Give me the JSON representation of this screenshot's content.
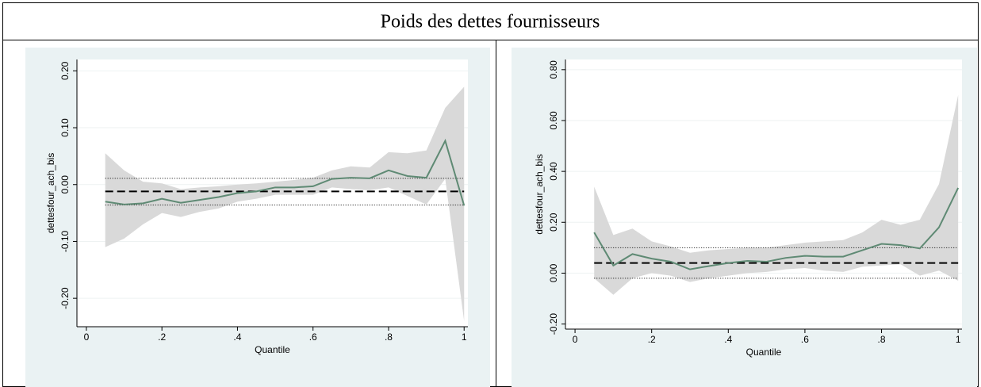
{
  "header": {
    "title": "Poids des dettes fournisseurs"
  },
  "chart_data": [
    {
      "type": "line",
      "ylabel": "dettesfour_ach_bis",
      "xlabel": "Quantile",
      "x": [
        0.05,
        0.1,
        0.15,
        0.2,
        0.25,
        0.3,
        0.35,
        0.4,
        0.45,
        0.5,
        0.55,
        0.6,
        0.65,
        0.7,
        0.75,
        0.8,
        0.85,
        0.9,
        0.95,
        1
      ],
      "series": [
        {
          "color": "#5f8a74",
          "values": [
            -0.03,
            -0.035,
            -0.033,
            -0.025,
            -0.032,
            -0.027,
            -0.022,
            -0.015,
            -0.012,
            -0.005,
            -0.005,
            -0.003,
            0.01,
            0.012,
            0.011,
            0.025,
            0.015,
            0.012,
            0.077,
            -0.037
          ]
        }
      ],
      "ci_upper": [
        0.055,
        0.025,
        0.005,
        0.002,
        -0.008,
        -0.005,
        -0.003,
        0.0,
        0.002,
        0.005,
        0.008,
        0.012,
        0.025,
        0.032,
        0.03,
        0.057,
        0.055,
        0.06,
        0.135,
        0.172
      ],
      "ci_lower": [
        -0.11,
        -0.095,
        -0.07,
        -0.05,
        -0.057,
        -0.048,
        -0.042,
        -0.03,
        -0.025,
        -0.018,
        -0.018,
        -0.018,
        -0.005,
        -0.008,
        -0.01,
        -0.005,
        -0.02,
        -0.035,
        0.01,
        -0.24
      ],
      "ci_color": "#d9d9d9",
      "ols_value": -0.012,
      "ols_upper": 0.011,
      "ols_lower": -0.036,
      "xlim": [
        -0.025,
        1.01
      ],
      "ylim": [
        -0.25,
        0.22
      ],
      "xticks": [
        0,
        {
          "value": 0.2,
          "label": ".2"
        },
        {
          "value": 0.4,
          "label": ".4"
        },
        {
          "value": 0.6,
          "label": ".6"
        },
        {
          "value": 0.8,
          "label": ".8"
        },
        1
      ],
      "yticks": [
        {
          "value": -0.2,
          "label": "-0.20"
        },
        {
          "value": -0.1,
          "label": "-0.10"
        },
        {
          "value": 0,
          "label": "0.00"
        },
        {
          "value": 0.1,
          "label": "0.10"
        },
        {
          "value": 0.2,
          "label": "0.20"
        }
      ],
      "grid": true
    },
    {
      "type": "line",
      "ylabel": "dettesfour_ach_bis",
      "xlabel": "Quantile",
      "x": [
        0.05,
        0.1,
        0.15,
        0.2,
        0.25,
        0.3,
        0.35,
        0.4,
        0.45,
        0.5,
        0.55,
        0.6,
        0.65,
        0.7,
        0.75,
        0.8,
        0.85,
        0.9,
        0.95,
        1
      ],
      "series": [
        {
          "color": "#5f8a74",
          "values": [
            0.16,
            0.03,
            0.075,
            0.057,
            0.045,
            0.015,
            0.028,
            0.04,
            0.048,
            0.045,
            0.06,
            0.068,
            0.065,
            0.065,
            0.09,
            0.115,
            0.11,
            0.097,
            0.18,
            0.335
          ]
        }
      ],
      "ci_upper": [
        0.34,
        0.15,
        0.175,
        0.125,
        0.105,
        0.08,
        0.09,
        0.095,
        0.1,
        0.1,
        0.11,
        0.12,
        0.125,
        0.13,
        0.16,
        0.21,
        0.19,
        0.21,
        0.35,
        0.7
      ],
      "ci_lower": [
        -0.02,
        -0.085,
        -0.02,
        0.0,
        -0.01,
        -0.035,
        -0.02,
        -0.01,
        0.0,
        0.005,
        0.015,
        0.02,
        0.01,
        0.005,
        0.025,
        0.03,
        0.035,
        -0.01,
        0.01,
        -0.03
      ],
      "ci_color": "#d9d9d9",
      "ols_value": 0.04,
      "ols_upper": 0.1,
      "ols_lower": -0.02,
      "xlim": [
        -0.025,
        1.01
      ],
      "ylim": [
        -0.22,
        0.84
      ],
      "xticks": [
        0,
        {
          "value": 0.2,
          "label": ".2"
        },
        {
          "value": 0.4,
          "label": ".4"
        },
        {
          "value": 0.6,
          "label": ".6"
        },
        {
          "value": 0.8,
          "label": ".8"
        },
        1
      ],
      "yticks": [
        {
          "value": -0.2,
          "label": "-0.20"
        },
        {
          "value": 0,
          "label": "0.00"
        },
        {
          "value": 0.2,
          "label": "0.20"
        },
        {
          "value": 0.4,
          "label": "0.40"
        },
        {
          "value": 0.6,
          "label": "0.60"
        },
        {
          "value": 0.8,
          "label": "0.80"
        }
      ],
      "grid": true
    }
  ]
}
